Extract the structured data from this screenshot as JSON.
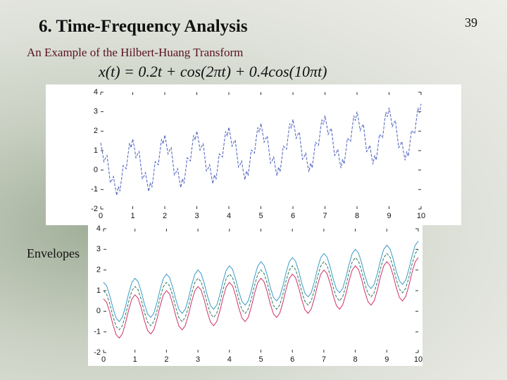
{
  "slide": {
    "title": "6. Time-Frequency Analysis",
    "page_number": "39",
    "subtitle": "An Example of the Hilbert-Huang Transform",
    "formula": "x(t) = 0.2t + cos(2πt) + 0.4cos(10πt)",
    "envelopes_label": "Envelopes"
  },
  "chart_data": [
    {
      "type": "line",
      "xlim": [
        0,
        10
      ],
      "ylim": [
        -2,
        4
      ],
      "xticks": [
        0,
        1,
        2,
        3,
        4,
        5,
        6,
        7,
        8,
        9,
        10
      ],
      "yticks": [
        -2,
        -1,
        0,
        1,
        2,
        3,
        4
      ],
      "x": [
        0,
        0.05,
        0.1,
        0.15,
        0.2,
        0.25,
        0.3,
        0.35,
        0.4,
        0.45,
        0.5,
        0.55,
        0.6,
        0.65,
        0.7,
        0.75,
        0.8,
        0.85,
        0.9,
        0.95,
        1,
        1.05,
        1.1,
        1.15,
        1.2,
        1.25,
        1.3,
        1.35,
        1.4,
        1.45,
        1.5,
        1.55,
        1.6,
        1.65,
        1.7,
        1.75,
        1.8,
        1.85,
        1.9,
        1.95,
        2,
        2.05,
        2.1,
        2.15,
        2.2,
        2.25,
        2.3,
        2.35,
        2.4,
        2.45,
        2.5,
        2.55,
        2.6,
        2.65,
        2.7,
        2.75,
        2.8,
        2.85,
        2.9,
        2.95,
        3,
        3.05,
        3.1,
        3.15,
        3.2,
        3.25,
        3.3,
        3.35,
        3.4,
        3.45,
        3.5,
        3.55,
        3.6,
        3.65,
        3.7,
        3.75,
        3.8,
        3.85,
        3.9,
        3.95,
        4,
        4.05,
        4.1,
        4.15,
        4.2,
        4.25,
        4.3,
        4.35,
        4.4,
        4.45,
        4.5,
        4.55,
        4.6,
        4.65,
        4.7,
        4.75,
        4.8,
        4.85,
        4.9,
        4.95,
        5,
        5.05,
        5.1,
        5.15,
        5.2,
        5.25,
        5.3,
        5.35,
        5.4,
        5.45,
        5.5,
        5.55,
        5.6,
        5.65,
        5.7,
        5.75,
        5.8,
        5.85,
        5.9,
        5.95,
        6,
        6.05,
        6.1,
        6.15,
        6.2,
        6.25,
        6.3,
        6.35,
        6.4,
        6.45,
        6.5,
        6.55,
        6.6,
        6.65,
        6.7,
        6.75,
        6.8,
        6.85,
        6.9,
        6.95,
        7,
        7.05,
        7.1,
        7.15,
        7.2,
        7.25,
        7.3,
        7.35,
        7.4,
        7.45,
        7.5,
        7.55,
        7.6,
        7.65,
        7.7,
        7.75,
        7.8,
        7.85,
        7.9,
        7.95,
        8,
        8.05,
        8.1,
        8.15,
        8.2,
        8.25,
        8.3,
        8.35,
        8.4,
        8.45,
        8.5,
        8.55,
        8.6,
        8.65,
        8.7,
        8.75,
        8.8,
        8.85,
        8.9,
        8.95,
        9,
        9.05,
        9.1,
        9.15,
        9.2,
        9.25,
        9.3,
        9.35,
        9.4,
        9.45,
        9.5,
        9.55,
        9.6,
        9.65,
        9.7,
        9.75,
        9.8,
        9.85,
        9.9,
        9.95,
        10
      ],
      "series": [
        {
          "color": "#4a5fc0",
          "style": "dashed",
          "values": [
            1.4,
            0.961,
            0.429,
            0.618,
            0.749,
            0.05,
            -0.649,
            -0.518,
            -0.329,
            -0.861,
            -1.3,
            -0.841,
            -1.089,
            -0.458,
            0.231,
            0.15,
            0.069,
            0.758,
            1.389,
            1.141,
            1.6,
            1.161,
            0.629,
            0.818,
            0.949,
            0.25,
            -0.449,
            -0.318,
            -0.129,
            -0.661,
            -1.1,
            -0.641,
            -0.889,
            -0.258,
            0.431,
            0.35,
            0.269,
            0.958,
            1.589,
            1.341,
            1.8,
            1.361,
            0.829,
            1.018,
            1.149,
            0.45,
            -0.249,
            -0.118,
            0.071,
            -0.461,
            -0.9,
            -0.441,
            -0.689,
            -0.058,
            0.631,
            0.55,
            0.469,
            1.158,
            1.789,
            1.541,
            2.0,
            1.561,
            1.029,
            1.218,
            1.349,
            0.65,
            -0.049,
            0.082,
            0.271,
            -0.261,
            -0.7,
            -0.241,
            -0.489,
            0.142,
            0.831,
            0.75,
            0.669,
            1.358,
            1.989,
            1.741,
            2.2,
            1.761,
            1.229,
            1.418,
            1.549,
            0.85,
            0.151,
            0.282,
            0.471,
            -0.061,
            -0.5,
            -0.041,
            -0.289,
            0.342,
            1.031,
            0.95,
            0.869,
            1.558,
            2.189,
            1.941,
            2.4,
            1.961,
            1.429,
            1.618,
            1.749,
            1.05,
            0.351,
            0.482,
            0.671,
            0.139,
            -0.3,
            0.159,
            -0.089,
            0.542,
            1.231,
            1.15,
            1.069,
            1.758,
            2.389,
            2.141,
            2.6,
            2.161,
            1.629,
            1.818,
            1.949,
            1.25,
            0.551,
            0.682,
            0.871,
            0.339,
            -0.1,
            0.359,
            0.111,
            0.742,
            1.431,
            1.35,
            1.269,
            1.958,
            2.589,
            2.341,
            2.8,
            2.361,
            1.829,
            2.018,
            2.149,
            1.45,
            0.751,
            0.882,
            1.071,
            0.539,
            0.1,
            0.559,
            0.311,
            0.942,
            1.631,
            1.55,
            1.469,
            2.158,
            2.789,
            2.541,
            3.0,
            2.561,
            2.029,
            2.218,
            2.349,
            1.65,
            0.951,
            1.082,
            1.271,
            0.739,
            0.3,
            0.759,
            0.511,
            1.142,
            1.831,
            1.75,
            1.669,
            2.358,
            2.989,
            2.741,
            3.2,
            2.761,
            2.229,
            2.418,
            2.549,
            1.85,
            1.151,
            1.282,
            1.471,
            0.939,
            0.5,
            0.959,
            0.711,
            1.342,
            2.031,
            1.95,
            1.869,
            2.558,
            3.189,
            2.941,
            3.4
          ]
        }
      ]
    },
    {
      "type": "line",
      "xlim": [
        0,
        10
      ],
      "ylim": [
        -2,
        4
      ],
      "xticks": [
        0,
        1,
        2,
        3,
        4,
        5,
        6,
        7,
        8,
        9,
        10
      ],
      "yticks": [
        -2,
        -1,
        0,
        1,
        2,
        3,
        4
      ],
      "x": [
        0,
        0.1,
        0.2,
        0.3,
        0.4,
        0.5,
        0.6,
        0.7,
        0.8,
        0.9,
        1,
        1.1,
        1.2,
        1.3,
        1.4,
        1.5,
        1.6,
        1.7,
        1.8,
        1.9,
        2,
        2.1,
        2.2,
        2.3,
        2.4,
        2.5,
        2.6,
        2.7,
        2.8,
        2.9,
        3,
        3.1,
        3.2,
        3.3,
        3.4,
        3.5,
        3.6,
        3.7,
        3.8,
        3.9,
        4,
        4.1,
        4.2,
        4.3,
        4.4,
        4.5,
        4.6,
        4.7,
        4.8,
        4.9,
        5,
        5.1,
        5.2,
        5.3,
        5.4,
        5.5,
        5.6,
        5.7,
        5.8,
        5.9,
        6,
        6.1,
        6.2,
        6.3,
        6.4,
        6.5,
        6.6,
        6.7,
        6.8,
        6.9,
        7,
        7.1,
        7.2,
        7.3,
        7.4,
        7.5,
        7.6,
        7.7,
        7.8,
        7.9,
        8,
        8.1,
        8.2,
        8.3,
        8.4,
        8.5,
        8.6,
        8.7,
        8.8,
        8.9,
        9,
        9.1,
        9.2,
        9.3,
        9.4,
        9.5,
        9.6,
        9.7,
        9.8,
        9.9,
        10
      ],
      "series": [
        {
          "color": "#3a9ac8",
          "style": "solid",
          "values": [
            1.4,
            1.229,
            0.749,
            0.151,
            -0.329,
            -0.5,
            -0.289,
            0.231,
            0.869,
            1.389,
            1.6,
            1.429,
            0.949,
            0.351,
            -0.129,
            -0.3,
            -0.089,
            0.431,
            1.069,
            1.589,
            1.8,
            1.629,
            1.149,
            0.551,
            0.071,
            -0.1,
            0.111,
            0.631,
            1.269,
            1.789,
            2.0,
            1.829,
            1.349,
            0.751,
            0.271,
            0.1,
            0.311,
            0.831,
            1.469,
            1.989,
            2.2,
            2.029,
            1.549,
            0.951,
            0.471,
            0.3,
            0.511,
            1.031,
            1.669,
            2.189,
            2.4,
            2.229,
            1.749,
            1.151,
            0.671,
            0.5,
            0.711,
            1.231,
            1.869,
            2.389,
            2.6,
            2.429,
            1.949,
            1.351,
            0.871,
            0.7,
            0.911,
            1.431,
            2.069,
            2.589,
            2.8,
            2.629,
            2.149,
            1.551,
            1.071,
            0.9,
            1.111,
            1.631,
            2.269,
            2.789,
            3.0,
            2.829,
            2.349,
            1.751,
            1.271,
            1.1,
            1.311,
            1.831,
            2.469,
            2.989,
            3.2,
            3.029,
            2.549,
            1.951,
            1.471,
            1.3,
            1.511,
            2.031,
            2.669,
            3.189,
            3.4
          ]
        },
        {
          "color": "#d0306a",
          "style": "solid",
          "values": [
            0.6,
            0.429,
            -0.051,
            -0.649,
            -1.129,
            -1.3,
            -1.089,
            -0.569,
            0.069,
            0.589,
            0.8,
            0.629,
            0.149,
            -0.449,
            -0.929,
            -1.1,
            -0.889,
            -0.369,
            0.269,
            0.789,
            1,
            0.829,
            0.349,
            -0.249,
            -0.729,
            -0.9,
            -0.689,
            -0.169,
            0.469,
            0.989,
            1.2,
            1.029,
            0.549,
            -0.049,
            -0.529,
            -0.7,
            -0.489,
            0.031,
            0.669,
            1.189,
            1.4,
            1.229,
            0.749,
            0.151,
            -0.329,
            -0.5,
            -0.289,
            0.231,
            0.869,
            1.389,
            1.6,
            1.429,
            0.949,
            0.351,
            -0.129,
            -0.3,
            -0.089,
            0.431,
            1.069,
            1.589,
            1.8,
            1.629,
            1.149,
            0.551,
            0.071,
            -0.1,
            0.111,
            0.631,
            1.269,
            1.789,
            2.0,
            1.829,
            1.349,
            0.751,
            0.271,
            0.1,
            0.311,
            0.831,
            1.469,
            1.989,
            2.2,
            2.029,
            1.549,
            0.951,
            0.471,
            0.3,
            0.511,
            1.031,
            1.669,
            2.189,
            2.4,
            2.229,
            1.749,
            1.151,
            0.671,
            0.5,
            0.711,
            1.231,
            1.869,
            2.389,
            2.6
          ]
        },
        {
          "color": "#2a7a5a",
          "style": "dashed",
          "values": [
            1,
            0.829,
            0.349,
            -0.249,
            -0.729,
            -0.9,
            -0.689,
            -0.169,
            0.469,
            0.989,
            1.2,
            1.029,
            0.549,
            -0.049,
            -0.529,
            -0.7,
            -0.489,
            0.031,
            0.669,
            1.189,
            1.4,
            1.229,
            0.749,
            0.151,
            -0.329,
            -0.5,
            -0.289,
            0.231,
            0.869,
            1.389,
            1.6,
            1.429,
            0.949,
            0.351,
            -0.129,
            -0.3,
            -0.089,
            0.431,
            1.069,
            1.589,
            1.8,
            1.629,
            1.149,
            0.551,
            0.071,
            -0.1,
            0.111,
            0.631,
            1.269,
            1.789,
            2.0,
            1.829,
            1.349,
            0.751,
            0.271,
            0.1,
            0.311,
            0.831,
            1.469,
            1.989,
            2.2,
            2.029,
            1.549,
            0.951,
            0.471,
            0.3,
            0.511,
            1.031,
            1.669,
            2.189,
            2.4,
            2.229,
            1.749,
            1.151,
            0.671,
            0.5,
            0.711,
            1.231,
            1.869,
            2.389,
            2.6,
            2.429,
            1.949,
            1.351,
            0.871,
            0.7,
            0.911,
            1.431,
            2.069,
            2.589,
            2.8,
            2.629,
            2.149,
            1.551,
            1.071,
            0.9,
            1.111,
            1.631,
            2.269,
            2.789,
            3.0
          ]
        }
      ]
    }
  ]
}
